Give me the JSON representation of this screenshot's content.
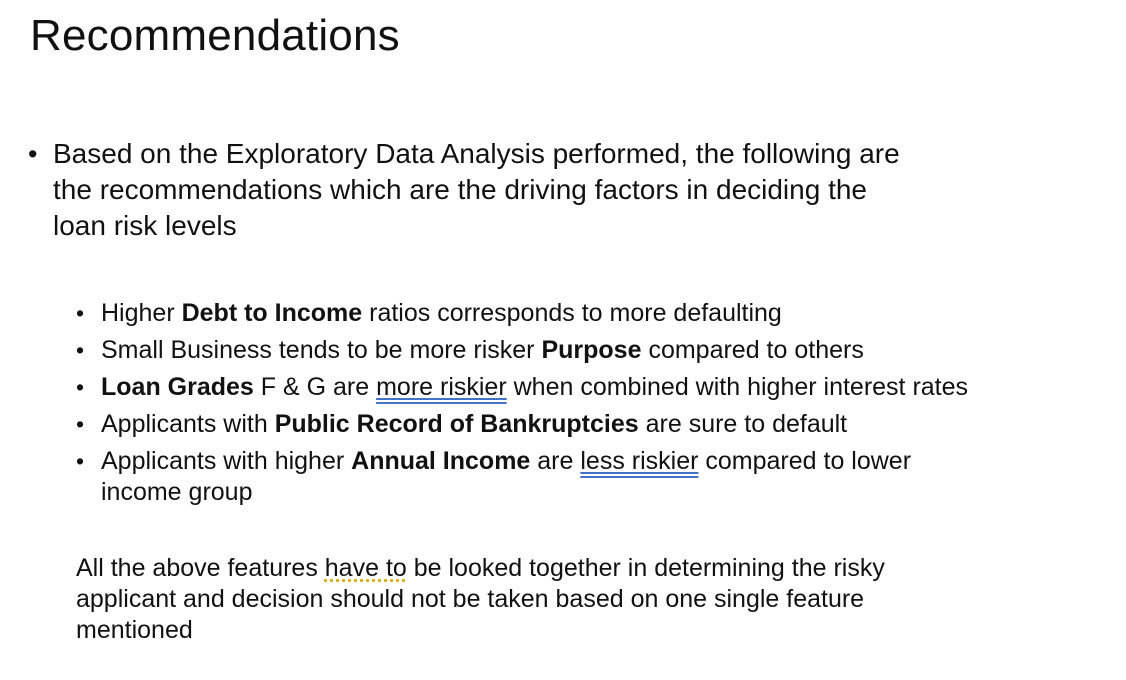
{
  "slide": {
    "title": "Recommendations",
    "main_bullet": "Based on the Exploratory Data Analysis performed, the following are\nthe recommendations which are the driving factors in deciding the\nloan risk levels",
    "sub_bullets": [
      {
        "part1": "Higher ",
        "bold1": "Debt to Income",
        "part2": " ratios corresponds to more defaulting"
      },
      {
        "part1": "Small Business tends to be more risker ",
        "bold1": "Purpose",
        "part2": " compared to others"
      },
      {
        "bold1": "Loan Grades",
        "part1": " F & G are ",
        "underlined": "more riskier",
        "part2": " when combined with higher interest rates"
      },
      {
        "part1": "Applicants with ",
        "bold1": "Public Record of Bankruptcies",
        "part2": " are sure to default"
      },
      {
        "part1": "Applicants with higher ",
        "bold1": "Annual Income",
        "part2": " are ",
        "underlined": "less riskier",
        "part3": " compared to lower\nincome group"
      }
    ],
    "conclusion": {
      "part1": "All the above features ",
      "underlined": "have to",
      "part2": " be looked together in determining the risky\napplicant and decision should not be taken based on one single feature\nmentioned"
    }
  }
}
